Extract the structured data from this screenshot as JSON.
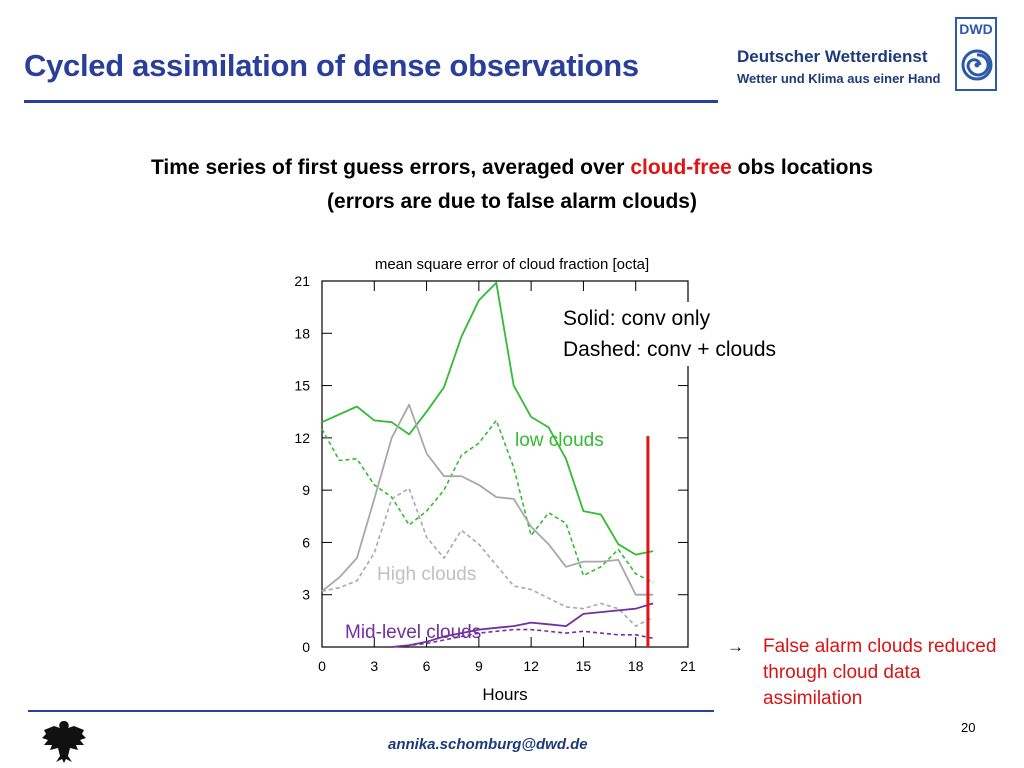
{
  "slide": {
    "title": "Cycled assimilation of dense observations",
    "org_name": "Deutscher Wetterdienst",
    "org_tagline": "Wetter und Klima aus einer Hand",
    "logo_text": "DWD",
    "subtitle_part1": "Time series of first guess errors,  averaged over ",
    "subtitle_highlight": "cloud-free",
    "subtitle_part2": " obs locations",
    "subtitle_line2": "(errors are due to false alarm clouds)",
    "note_arrow": "→",
    "note": "False alarm clouds reduced through cloud data assimilation",
    "email": "annika.schomburg@dwd.de",
    "page_number": "20",
    "colors": {
      "title": "#2a3f9a",
      "low": "#33bb33",
      "high": "#a8a8a8",
      "mid": "#7030a0",
      "marker": "#e01414"
    }
  },
  "chart_data": {
    "type": "line",
    "title": "mean square error of cloud fraction [octa]",
    "xlabel": "Hours",
    "ylabel": "",
    "xlim": [
      0,
      21
    ],
    "ylim": [
      0,
      21
    ],
    "xticks": [
      0,
      3,
      6,
      9,
      12,
      15,
      18,
      21
    ],
    "yticks": [
      0,
      3,
      6,
      9,
      12,
      15,
      18,
      21
    ],
    "legend_line1": "Solid: conv only",
    "legend_line2": "Dashed: conv + clouds",
    "marker_x": 18.7,
    "group_labels": {
      "low": "low clouds",
      "high": "High clouds",
      "mid": "Mid-level clouds"
    },
    "series": [
      {
        "group": "low",
        "style": "solid",
        "color": "#33bb33",
        "x": [
          0,
          2,
          3,
          4,
          5,
          6,
          7,
          8,
          9,
          10,
          11,
          12,
          13,
          14,
          15,
          16,
          17,
          18,
          19
        ],
        "y": [
          12.9,
          13.8,
          13.0,
          12.9,
          12.2,
          13.5,
          14.9,
          17.8,
          19.9,
          20.9,
          15.0,
          13.2,
          12.6,
          10.8,
          7.8,
          7.6,
          5.9,
          5.3,
          5.5
        ]
      },
      {
        "group": "low",
        "style": "dashed",
        "color": "#33bb33",
        "x": [
          0,
          1,
          2,
          3,
          4,
          5,
          6,
          7,
          8,
          9,
          10,
          11,
          12,
          13,
          14,
          15,
          16,
          17,
          18,
          19
        ],
        "y": [
          12.5,
          10.7,
          10.8,
          9.3,
          8.6,
          7.0,
          7.8,
          9.0,
          11.0,
          11.7,
          13.0,
          10.3,
          6.4,
          7.7,
          7.1,
          4.1,
          4.6,
          5.6,
          4.2,
          3.7
        ]
      },
      {
        "group": "high",
        "style": "solid",
        "color": "#a8a8a8",
        "x": [
          0,
          1,
          2,
          3,
          4,
          5,
          6,
          7,
          8,
          9,
          10,
          11,
          12,
          13,
          14,
          15,
          16,
          17,
          18,
          19
        ],
        "y": [
          3.2,
          4.0,
          5.1,
          8.5,
          12.0,
          13.9,
          11.1,
          9.8,
          9.8,
          9.3,
          8.6,
          8.5,
          6.9,
          5.9,
          4.6,
          4.9,
          4.9,
          5.0,
          3.0,
          3.0
        ]
      },
      {
        "group": "high",
        "style": "dashed",
        "color": "#a8a8a8",
        "x": [
          0,
          1,
          2,
          3,
          4,
          5,
          6,
          7,
          8,
          9,
          10,
          11,
          12,
          13,
          14,
          15,
          16,
          17,
          18,
          19
        ],
        "y": [
          3.2,
          3.4,
          3.8,
          5.4,
          8.5,
          9.1,
          6.3,
          5.1,
          6.7,
          5.9,
          4.7,
          3.5,
          3.3,
          2.8,
          2.3,
          2.2,
          2.5,
          2.2,
          1.2,
          1.7
        ]
      },
      {
        "group": "mid",
        "style": "solid",
        "color": "#7030a0",
        "x": [
          4,
          5,
          6,
          7,
          8,
          9,
          10,
          11,
          12,
          13,
          14,
          15,
          16,
          17,
          18,
          19
        ],
        "y": [
          0.0,
          0.1,
          0.3,
          0.6,
          0.8,
          1.0,
          1.1,
          1.2,
          1.4,
          1.3,
          1.2,
          1.9,
          2.0,
          2.1,
          2.2,
          2.5
        ]
      },
      {
        "group": "mid",
        "style": "dashed",
        "color": "#7030a0",
        "x": [
          4,
          5,
          6,
          7,
          8,
          9,
          10,
          11,
          12,
          13,
          14,
          15,
          16,
          17,
          18,
          19
        ],
        "y": [
          0.0,
          0.1,
          0.2,
          0.4,
          0.6,
          0.8,
          0.9,
          1.0,
          1.0,
          0.9,
          0.8,
          0.9,
          0.8,
          0.7,
          0.7,
          0.5
        ]
      }
    ]
  }
}
